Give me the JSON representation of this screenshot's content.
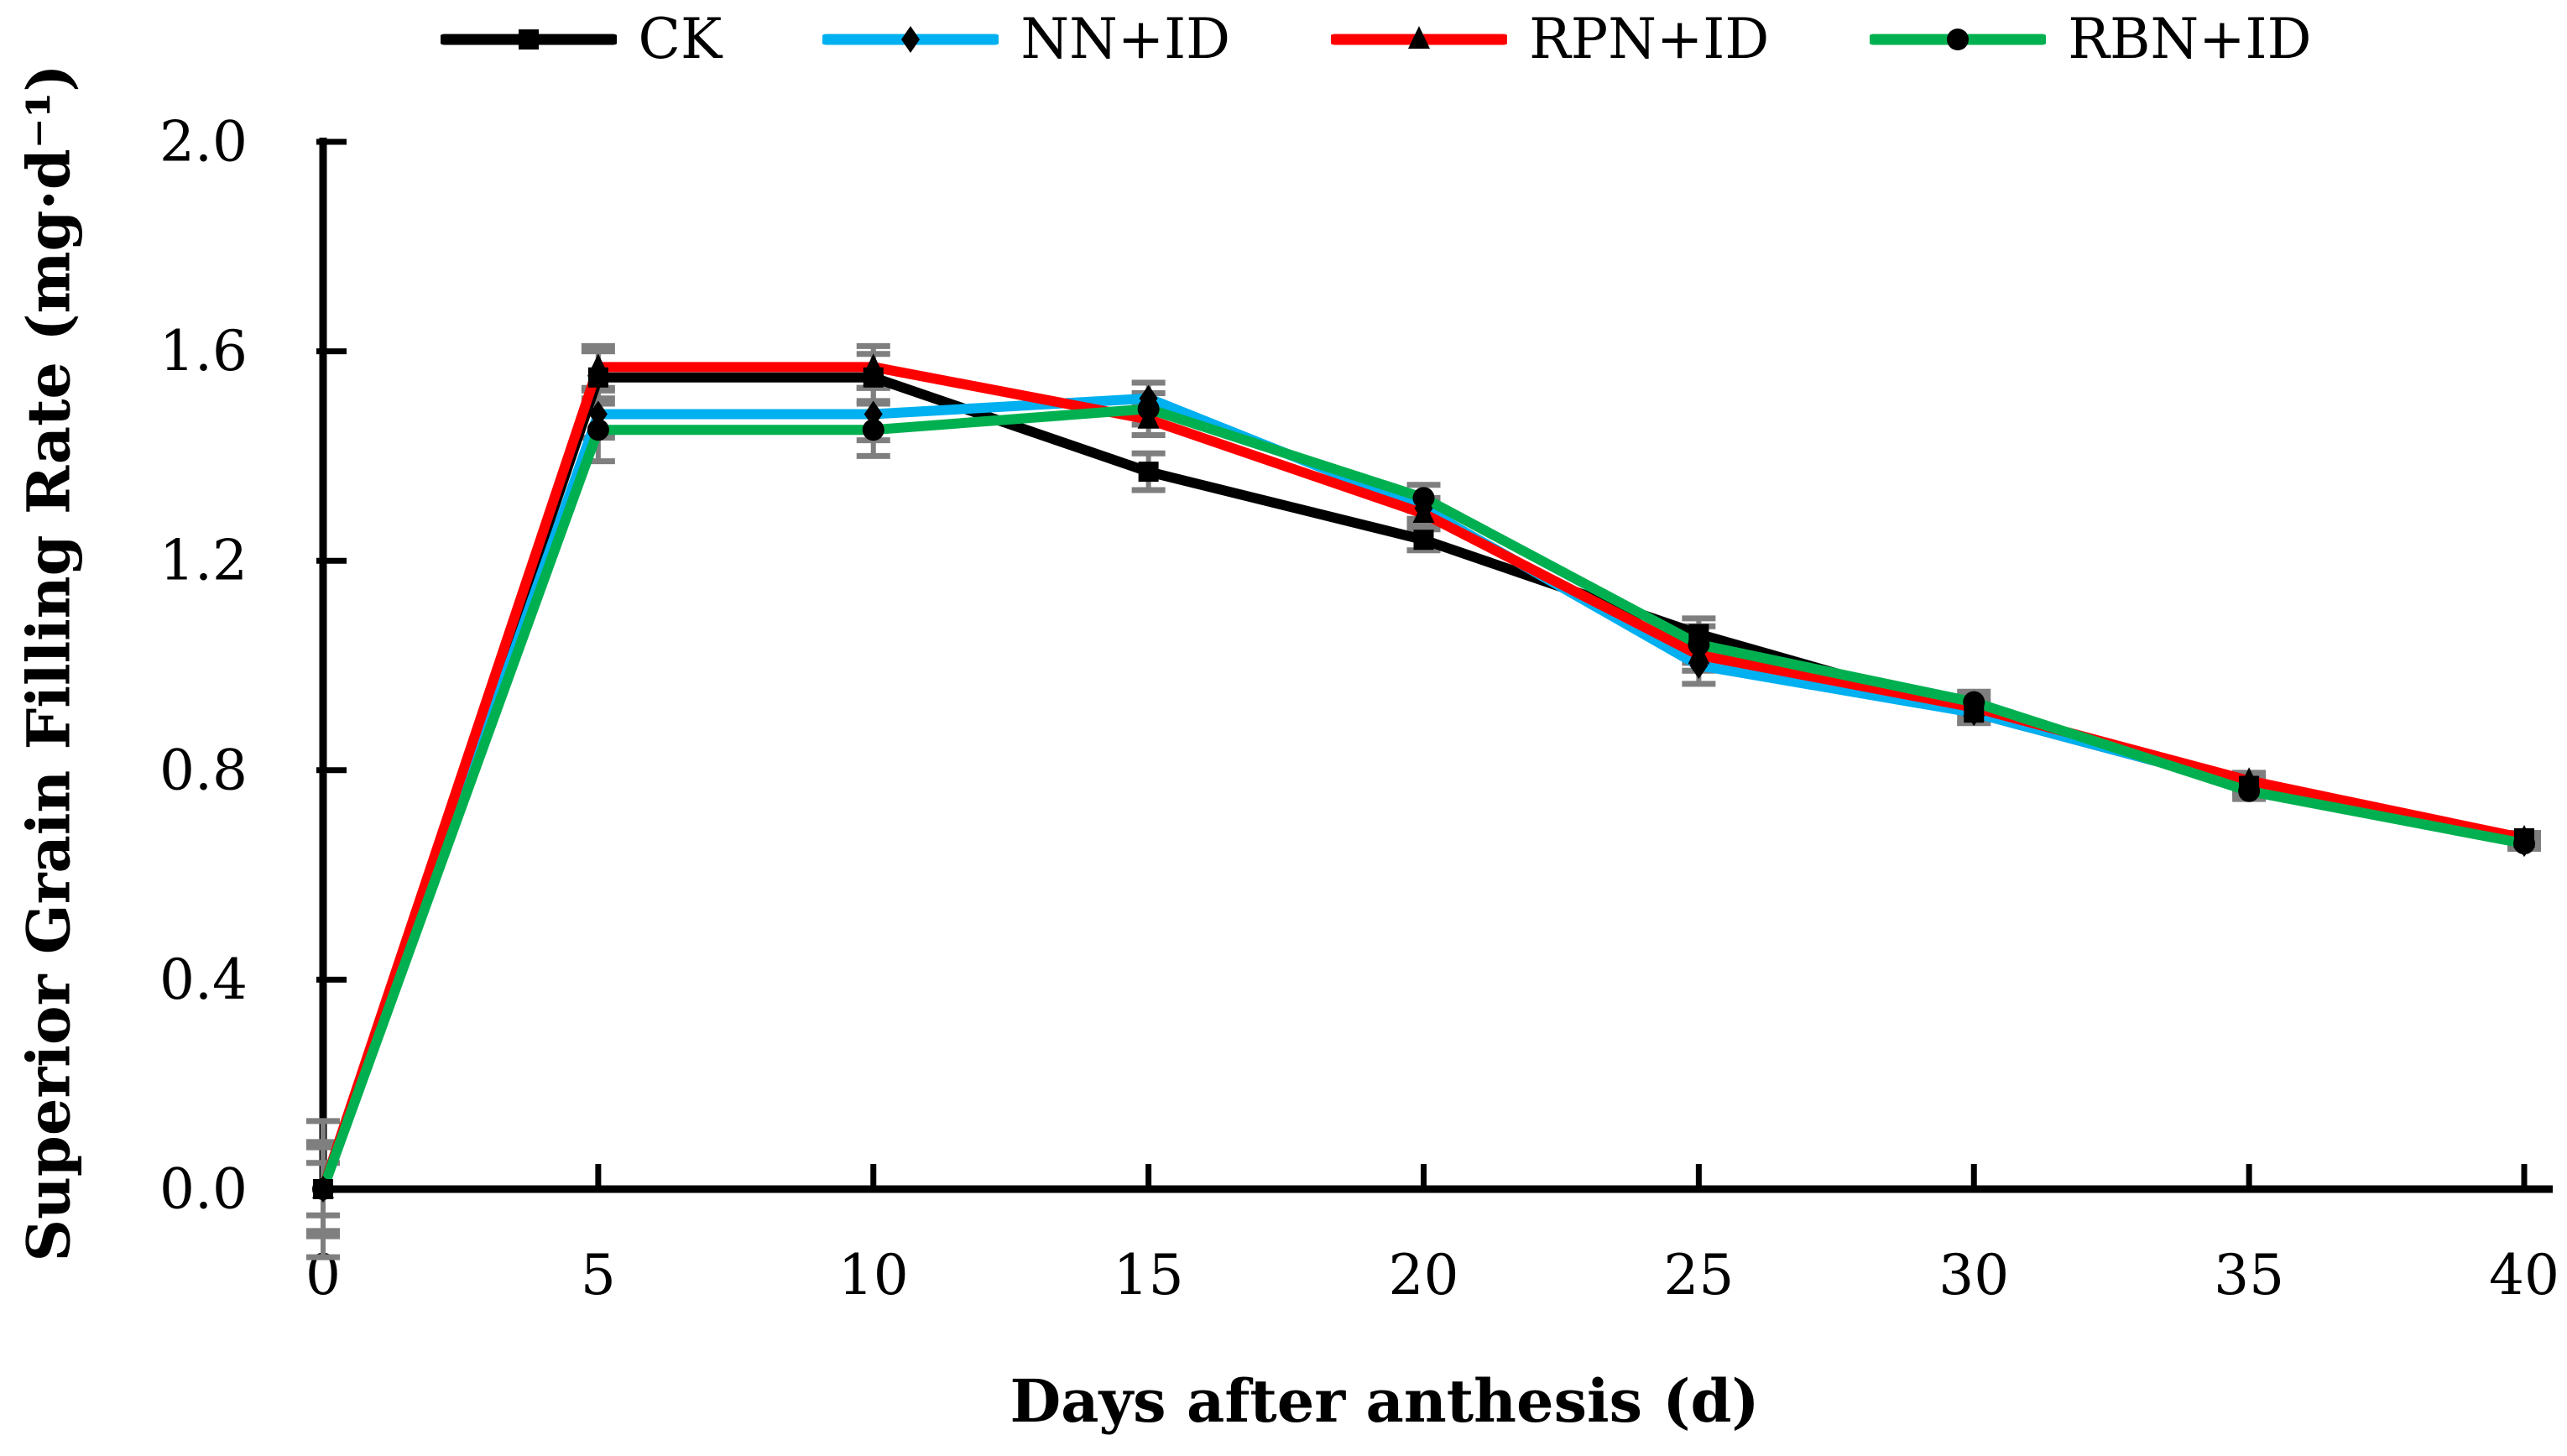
{
  "chart_data": {
    "type": "line",
    "title": "",
    "xlabel": "Days after anthesis (d)",
    "ylabel": "Superior Grain Filling Rate (mg·d⁻¹)",
    "x": [
      0,
      5,
      10,
      15,
      20,
      25,
      30,
      35,
      40
    ],
    "xticks": [
      0,
      5,
      10,
      15,
      20,
      25,
      30,
      35,
      40
    ],
    "yticks": [
      "0.0",
      "0.4",
      "0.8",
      "1.2",
      "1.6",
      "2.0"
    ],
    "ytick_values": [
      0.0,
      0.4,
      0.8,
      1.2,
      1.6,
      2.0
    ],
    "xlim": [
      0,
      40
    ],
    "ylim": [
      0.0,
      2.0
    ],
    "grid": false,
    "legend_position": "top",
    "error_bar_color": "#7F7F7F",
    "axis_color": "#000000",
    "series": [
      {
        "name": "CK",
        "color": "#000000",
        "marker": "square",
        "values": [
          0,
          1.55,
          1.55,
          1.37,
          1.24,
          1.06,
          0.91,
          0.77,
          0.67
        ],
        "errors": [
          0.13,
          0.05,
          0.045,
          0.035,
          0.02,
          0.03,
          0.02,
          0.015,
          0.01
        ]
      },
      {
        "name": "NN+ID",
        "color": "#00B0F0",
        "marker": "diamond",
        "values": [
          0,
          1.48,
          1.48,
          1.51,
          1.3,
          1.0,
          0.91,
          0.77,
          0.66
        ],
        "errors": [
          0.09,
          0.045,
          0.05,
          0.03,
          0.02,
          0.035,
          0.02,
          0.015,
          0.01
        ]
      },
      {
        "name": "RPN+ID",
        "color": "#FF0000",
        "marker": "triangle",
        "values": [
          0,
          1.57,
          1.57,
          1.47,
          1.29,
          1.02,
          0.92,
          0.78,
          0.67
        ],
        "errors": [
          0.05,
          0.04,
          0.04,
          0.03,
          0.02,
          0.03,
          0.02,
          0.015,
          0.01
        ]
      },
      {
        "name": "RBN+ID",
        "color": "#00B050",
        "marker": "circle",
        "values": [
          0,
          1.45,
          1.45,
          1.49,
          1.32,
          1.04,
          0.93,
          0.76,
          0.66
        ],
        "errors": [
          0.08,
          0.06,
          0.05,
          0.03,
          0.025,
          0.035,
          0.02,
          0.015,
          0.01
        ]
      }
    ]
  }
}
